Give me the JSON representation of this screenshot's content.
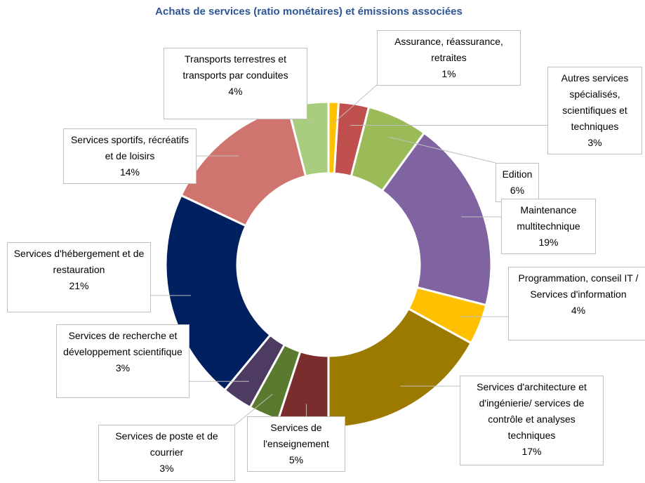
{
  "chart_data": {
    "type": "donut",
    "title": "Achats de services (ratio monétaires) et émissions associées",
    "categories": [
      "Assurance, réassurance, retraites",
      "Autres services spécialisés, scientifiques et techniques",
      "Edition",
      "Maintenance multitechnique",
      "Programmation, conseil IT / Services d'information",
      "Services d'architecture et d'ingénierie/ services de contrôle et analyses techniques",
      "Services de l'enseignement",
      "Services de poste et de courrier",
      "Services de recherche et développement scientifique",
      "Services d'hébergement et de restauration",
      "Services sportifs, récréatifs et de loisirs",
      "Transports terrestres et transports par conduites"
    ],
    "values": [
      1,
      3,
      6,
      19,
      4,
      17,
      5,
      3,
      3,
      21,
      14,
      4
    ],
    "value_labels": [
      "1%",
      "3%",
      "6%",
      "19%",
      "4%",
      "17%",
      "5%",
      "3%",
      "3%",
      "21%",
      "14%",
      "4%"
    ],
    "colors": [
      "#ffc000",
      "#c0504d",
      "#9bbb59",
      "#8064a2",
      "#ffc000",
      "#9c7a00",
      "#7b2c2c",
      "#5a7a2f",
      "#4d3b62",
      "#002060",
      "#d07470",
      "#a9cd7f"
    ]
  }
}
